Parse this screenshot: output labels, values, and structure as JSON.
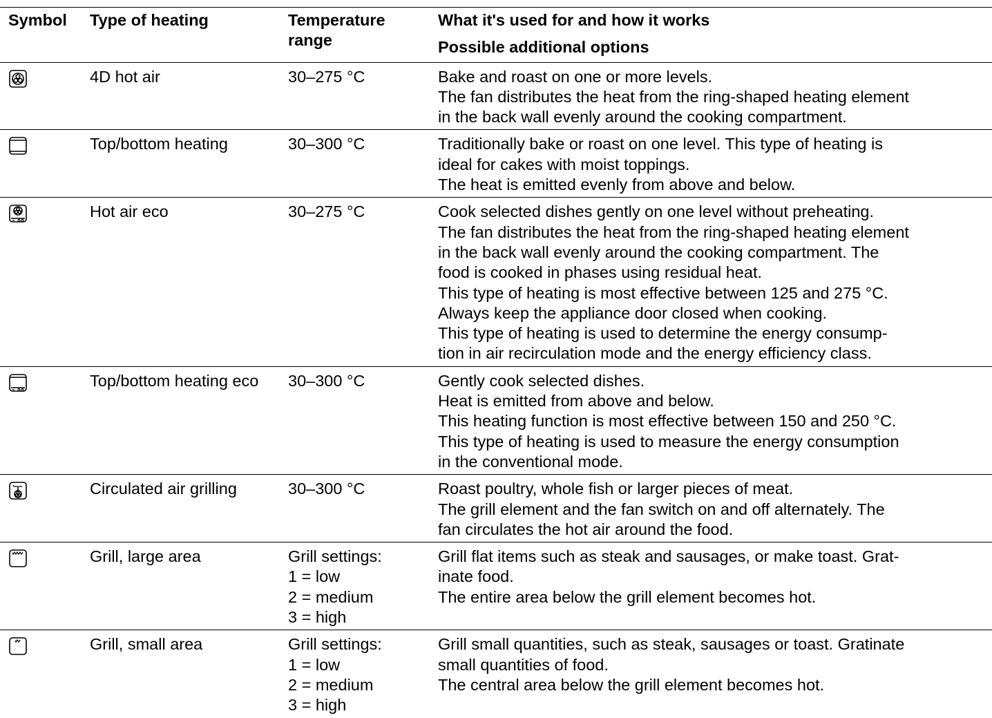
{
  "header": {
    "columns": [
      "Symbol",
      "Type of heating",
      "Temperature range",
      "What it's used for and how it works"
    ],
    "options": "Possible additional options"
  },
  "rows": [
    {
      "type": "4D hot air",
      "temperature": [
        "30–275 °C"
      ],
      "description": [
        "Bake and roast on one or more levels.",
        "The fan distributes the heat from the ring-shaped heating element",
        "in the back wall evenly around the cooking compartment."
      ]
    },
    {
      "type": "Top/bottom heating",
      "temperature": [
        "30–300 °C"
      ],
      "description": [
        "Traditionally bake or roast on one level. This type of heating is",
        "ideal for cakes with moist toppings.",
        "The heat is emitted evenly from above and below."
      ]
    },
    {
      "type": "Hot air eco",
      "temperature": [
        "30–275 °C"
      ],
      "description": [
        "Cook selected dishes gently on one level without preheating.",
        "The fan distributes the heat from the ring-shaped heating element",
        "in the back wall evenly around the cooking compartment. The",
        "food is cooked in phases using residual heat.",
        "This type of heating is most effective between 125 and 275 °C.",
        "Always keep the appliance door closed when cooking.",
        "This type of heating is used to determine the energy consump-",
        "tion in air recirculation mode and the energy efficiency class."
      ]
    },
    {
      "type": "Top/bottom heating eco",
      "temperature": [
        "30–300 °C"
      ],
      "description": [
        "Gently cook selected dishes.",
        "Heat is emitted from above and below.",
        "This heating function is most effective between 150 and 250 °C.",
        "This type of heating is used to measure the energy consumption",
        "in the conventional mode."
      ]
    },
    {
      "type": "Circulated air grilling",
      "temperature": [
        "30–300 °C"
      ],
      "description": [
        "Roast poultry, whole fish or larger pieces of meat.",
        "The grill element and the fan switch on and off alternately. The",
        "fan circulates the hot air around the food."
      ]
    },
    {
      "type": "Grill, large area",
      "temperature": [
        "Grill settings:",
        "1 = low",
        "2 = medium",
        "3 = high"
      ],
      "description": [
        "Grill flat items such as steak and sausages, or make toast. Grat-",
        "inate food.",
        "The entire area below the grill element becomes hot."
      ]
    },
    {
      "type": "Grill, small area",
      "temperature": [
        "Grill settings:",
        "1 = low",
        "2 = medium",
        "3 = high"
      ],
      "description": [
        "Grill small quantities, such as steak, sausages or toast. Gratinate",
        "small quantities of food.",
        "The central area below the grill element becomes hot."
      ]
    }
  ]
}
